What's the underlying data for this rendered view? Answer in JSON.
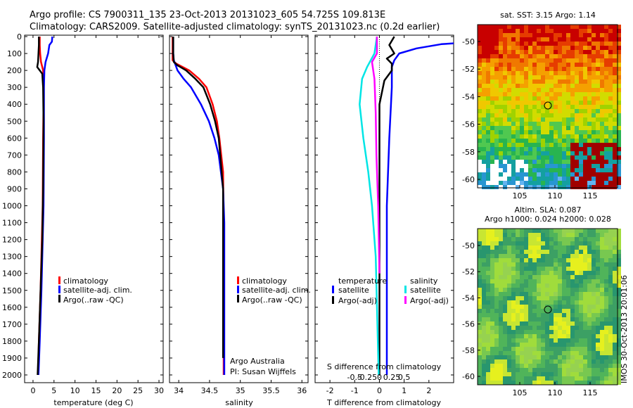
{
  "header": {
    "line1": "Argo profile: CS 7900311_135 23-Oct-2013 20131023_605 54.725S 109.813E",
    "line2": "Climatology: CARS2009. Satellite-adjusted climatology: synTS_20131023.nc (0.2d earlier)"
  },
  "colors": {
    "climatology": "#ff0000",
    "satellite": "#0000ff",
    "argo": "#000000",
    "sat_salinity": "#00e5e5",
    "argo_adj_salinity": "#ff00ff"
  },
  "chart_data": [
    {
      "type": "line",
      "panel": "temperature",
      "xlabel": "temperature (deg C)",
      "ylabel": "",
      "xlim": [
        -2,
        31
      ],
      "ylim": [
        2080,
        0
      ],
      "y_reversed": true,
      "xticks": [
        0,
        5,
        10,
        15,
        20,
        25,
        30
      ],
      "yticks": [
        0,
        100,
        200,
        300,
        400,
        500,
        600,
        700,
        800,
        900,
        1000,
        1100,
        1200,
        1300,
        1400,
        1500,
        1600,
        1700,
        1800,
        1900,
        2000
      ],
      "legend": [
        "climatology",
        "satellite-adj. clim.",
        "Argo(..raw -QC)"
      ],
      "series": [
        {
          "name": "climatology",
          "color": "#ff0000",
          "x": [
            1.6,
            1.6,
            1.7,
            1.9,
            2.4,
            2.5,
            2.5,
            2.4,
            2.3,
            2.1,
            1.8,
            1.4,
            1.2
          ],
          "y": [
            0,
            50,
            100,
            150,
            200,
            250,
            400,
            600,
            1000,
            1200,
            1500,
            1800,
            2000
          ]
        },
        {
          "name": "satellite-adj. clim.",
          "color": "#0000ff",
          "x": [
            4.6,
            4.5,
            3.9,
            3.6,
            3.0,
            2.7,
            2.6,
            2.6,
            2.5,
            2.3,
            2.0,
            1.6,
            1.3
          ],
          "y": [
            0,
            30,
            50,
            100,
            150,
            200,
            300,
            600,
            1000,
            1200,
            1500,
            1800,
            2000
          ]
        },
        {
          "name": "Argo(..raw -QC)",
          "color": "#000000",
          "x": [
            1.4,
            1.4,
            1.3,
            1.2,
            1.0,
            2.2,
            2.4,
            2.5,
            2.4,
            2.2,
            1.8,
            1.4,
            1.1
          ],
          "y": [
            0,
            50,
            100,
            150,
            180,
            220,
            300,
            500,
            900,
            1200,
            1500,
            1800,
            2000
          ]
        }
      ]
    },
    {
      "type": "line",
      "panel": "salinity",
      "xlabel": "salinity",
      "xlim": [
        33.85,
        36.1
      ],
      "ylim": [
        2080,
        0
      ],
      "y_reversed": true,
      "xticks": [
        34,
        34.5,
        35,
        35.5,
        36
      ],
      "legend": [
        "climatology",
        "satellite-adj. clim.",
        "Argo(..raw -QC)"
      ],
      "annotation": [
        "Argo Australia",
        "PI: Susan Wijffels"
      ],
      "series": [
        {
          "name": "climatology",
          "color": "#ff0000",
          "x": [
            33.9,
            33.9,
            33.9,
            33.96,
            34.17,
            34.33,
            34.45,
            34.55,
            34.62,
            34.66,
            34.72,
            34.73,
            34.73
          ],
          "y": [
            0,
            100,
            140,
            160,
            200,
            250,
            300,
            400,
            500,
            600,
            800,
            1200,
            2000
          ]
        },
        {
          "name": "satellite-adj. clim.",
          "color": "#0000ff",
          "x": [
            33.91,
            33.91,
            33.92,
            33.94,
            33.98,
            34.08,
            34.2,
            34.36,
            34.49,
            34.58,
            34.65,
            34.72,
            34.74,
            34.74
          ],
          "y": [
            0,
            100,
            140,
            160,
            200,
            250,
            300,
            400,
            500,
            600,
            700,
            900,
            1100,
            2000
          ]
        },
        {
          "name": "Argo(..raw -QC)",
          "color": "#000000",
          "x": [
            33.91,
            33.91,
            33.92,
            33.98,
            34.12,
            34.27,
            34.4,
            34.51,
            34.59,
            34.65,
            34.72,
            34.72
          ],
          "y": [
            0,
            100,
            150,
            170,
            200,
            250,
            300,
            400,
            500,
            600,
            900,
            1900
          ]
        }
      ]
    },
    {
      "type": "line",
      "panel": "difference",
      "xlabel": "T difference from climatology",
      "xlabel_top": "S difference from climatology",
      "xlim": [
        -2.6,
        3.0
      ],
      "ylim": [
        2080,
        0
      ],
      "y_reversed": true,
      "xticks": [
        -2,
        -1,
        0,
        1,
        2
      ],
      "xticks_top": [
        "-0.5",
        "-0.25",
        "0",
        "0.25",
        "0.5"
      ],
      "legend_left_title": "temperature",
      "legend_right_title": "salinity",
      "legend": [
        "satellite",
        "Argo(-adj)",
        "satellite",
        "Argo(-adj)"
      ],
      "series": [
        {
          "name": "temperature satellite",
          "color": "#0000ff",
          "x": [
            3.0,
            2.5,
            1.5,
            0.8,
            0.6,
            0.5,
            0.5,
            0.4,
            0.3,
            0.3,
            0.3,
            0.3
          ],
          "y": [
            40,
            45,
            70,
            100,
            140,
            180,
            300,
            600,
            1000,
            1400,
            1800,
            2000
          ]
        },
        {
          "name": "temperature Argo(-adj)",
          "color": "#000000",
          "x": [
            0.6,
            0.4,
            0.6,
            0.3,
            0.5,
            0.5,
            0.2,
            0.0,
            0.0,
            0.0,
            0.0
          ],
          "y": [
            0,
            50,
            100,
            130,
            160,
            200,
            260,
            400,
            700,
            1200,
            2000
          ]
        },
        {
          "name": "salinity satellite",
          "color": "#00e5e5",
          "x": [
            -0.1,
            -0.2,
            -0.5,
            -0.7,
            -0.8,
            -0.65,
            -0.45,
            -0.3,
            -0.15,
            -0.08,
            -0.03
          ],
          "y": [
            0,
            100,
            180,
            250,
            400,
            600,
            800,
            1000,
            1300,
            1700,
            2000
          ]
        },
        {
          "name": "salinity Argo(-adj)",
          "color": "#ff00ff",
          "x": [
            -0.1,
            -0.1,
            -0.3,
            -0.2,
            -0.15,
            -0.12,
            -0.05,
            0.0
          ],
          "y": [
            0,
            100,
            150,
            250,
            450,
            700,
            1000,
            1400
          ]
        }
      ]
    }
  ],
  "maps": {
    "sst": {
      "title": "sat. SST: 3.15 Argo: 1.14",
      "yticks": [
        "-50",
        "-52",
        "-54",
        "-56",
        "-58",
        "-60"
      ],
      "xticks": [
        "105",
        "110",
        "115"
      ]
    },
    "sla": {
      "title1": "Altim. SLA: 0.087",
      "title2": "Argo h1000: 0.024 h2000: 0.028",
      "yticks": [
        "-50",
        "-52",
        "-54",
        "-56",
        "-58",
        "-60"
      ],
      "xticks": [
        "105",
        "110",
        "115"
      ]
    }
  },
  "watermark": "IMOS 30-Oct-2013 20:01:06"
}
